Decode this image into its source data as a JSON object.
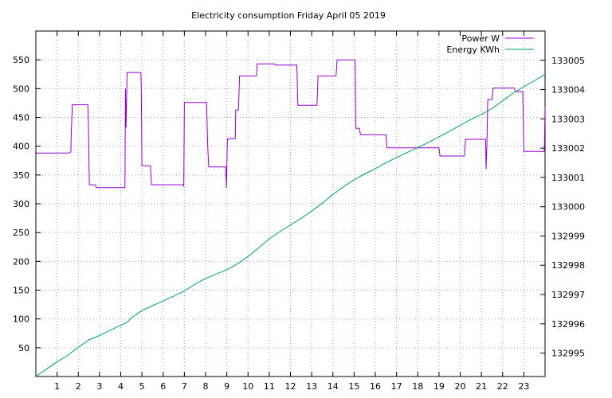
{
  "chart_data": {
    "type": "line",
    "title": "Electricity consumption Friday April 05 2019",
    "xlabel": "",
    "ylabel": "",
    "y2label": "",
    "grid": true,
    "legend_position": "top-right",
    "xlim": [
      0,
      24
    ],
    "ylim": [
      0,
      600
    ],
    "y2lim": [
      132994.2,
      133006
    ],
    "x_ticks": [
      1,
      2,
      3,
      4,
      5,
      6,
      7,
      8,
      9,
      10,
      11,
      12,
      13,
      14,
      15,
      16,
      17,
      18,
      19,
      20,
      21,
      22,
      23
    ],
    "y_ticks": [
      50,
      100,
      150,
      200,
      250,
      300,
      350,
      400,
      450,
      500,
      550
    ],
    "y2_ticks": [
      132995,
      132996,
      132997,
      132998,
      132999,
      133000,
      133001,
      133002,
      133003,
      133004,
      133005
    ],
    "series": [
      {
        "name": "Power W",
        "axis": "y1",
        "color": "#9400d3",
        "points": [
          [
            0.0,
            386
          ],
          [
            0.05,
            388
          ],
          [
            1.55,
            388
          ],
          [
            1.65,
            390
          ],
          [
            1.67,
            425
          ],
          [
            1.72,
            472
          ],
          [
            2.45,
            472
          ],
          [
            2.48,
            435
          ],
          [
            2.52,
            333
          ],
          [
            2.8,
            333
          ],
          [
            2.85,
            328
          ],
          [
            4.2,
            328
          ],
          [
            4.22,
            500
          ],
          [
            4.25,
            432
          ],
          [
            4.3,
            528
          ],
          [
            4.95,
            528
          ],
          [
            4.97,
            505
          ],
          [
            5.0,
            366
          ],
          [
            5.4,
            366
          ],
          [
            5.45,
            333
          ],
          [
            6.95,
            333
          ],
          [
            6.97,
            330
          ],
          [
            7.0,
            476
          ],
          [
            8.05,
            476
          ],
          [
            8.07,
            440
          ],
          [
            8.1,
            398
          ],
          [
            8.15,
            364
          ],
          [
            8.95,
            364
          ],
          [
            8.98,
            328
          ],
          [
            9.03,
            413
          ],
          [
            9.4,
            413
          ],
          [
            9.42,
            463
          ],
          [
            9.55,
            463
          ],
          [
            9.6,
            522
          ],
          [
            10.4,
            522
          ],
          [
            10.43,
            543
          ],
          [
            11.25,
            543
          ],
          [
            11.3,
            541
          ],
          [
            12.3,
            541
          ],
          [
            12.35,
            471
          ],
          [
            13.25,
            471
          ],
          [
            13.3,
            522
          ],
          [
            14.15,
            522
          ],
          [
            14.2,
            550
          ],
          [
            15.05,
            550
          ],
          [
            15.08,
            431
          ],
          [
            15.25,
            431
          ],
          [
            15.3,
            420
          ],
          [
            16.5,
            420
          ],
          [
            16.55,
            397
          ],
          [
            19.0,
            397
          ],
          [
            19.05,
            383
          ],
          [
            20.2,
            383
          ],
          [
            20.25,
            412
          ],
          [
            21.2,
            412
          ],
          [
            21.22,
            360
          ],
          [
            21.26,
            400
          ],
          [
            21.3,
            481
          ],
          [
            21.5,
            481
          ],
          [
            21.55,
            501
          ],
          [
            22.55,
            501
          ],
          [
            22.6,
            495
          ],
          [
            22.95,
            495
          ],
          [
            23.0,
            391
          ],
          [
            23.95,
            391
          ],
          [
            23.97,
            398
          ],
          [
            24.0,
            468
          ]
        ]
      },
      {
        "name": "Energy KWh",
        "axis": "y2",
        "color": "#009e73",
        "points": [
          [
            0.0,
            132994.2
          ],
          [
            0.5,
            132994.45
          ],
          [
            1.0,
            132994.7
          ],
          [
            1.5,
            132994.92
          ],
          [
            2.0,
            132995.2
          ],
          [
            2.5,
            132995.45
          ],
          [
            3.0,
            132995.6
          ],
          [
            3.5,
            132995.78
          ],
          [
            4.0,
            132995.95
          ],
          [
            4.3,
            132996.05
          ],
          [
            4.5,
            132996.2
          ],
          [
            5.0,
            132996.45
          ],
          [
            5.5,
            132996.62
          ],
          [
            6.0,
            132996.78
          ],
          [
            6.5,
            132996.95
          ],
          [
            7.0,
            132997.12
          ],
          [
            7.5,
            132997.35
          ],
          [
            8.0,
            132997.55
          ],
          [
            8.5,
            132997.7
          ],
          [
            9.0,
            132997.85
          ],
          [
            9.5,
            132998.05
          ],
          [
            10.0,
            132998.3
          ],
          [
            10.5,
            132998.6
          ],
          [
            11.0,
            132998.9
          ],
          [
            11.5,
            132999.15
          ],
          [
            12.0,
            132999.38
          ],
          [
            12.5,
            132999.6
          ],
          [
            13.0,
            132999.85
          ],
          [
            13.5,
            133000.12
          ],
          [
            14.0,
            133000.42
          ],
          [
            14.5,
            133000.68
          ],
          [
            15.0,
            133000.92
          ],
          [
            15.5,
            133001.12
          ],
          [
            16.0,
            133001.3
          ],
          [
            16.5,
            133001.5
          ],
          [
            17.0,
            133001.68
          ],
          [
            17.5,
            133001.85
          ],
          [
            18.0,
            133002.02
          ],
          [
            18.5,
            133002.2
          ],
          [
            19.0,
            133002.38
          ],
          [
            19.5,
            133002.58
          ],
          [
            20.0,
            133002.78
          ],
          [
            20.5,
            133002.98
          ],
          [
            21.0,
            133003.15
          ],
          [
            21.5,
            133003.35
          ],
          [
            22.0,
            133003.62
          ],
          [
            22.5,
            133003.88
          ],
          [
            23.0,
            133004.1
          ],
          [
            23.5,
            133004.3
          ],
          [
            24.0,
            133004.52
          ]
        ]
      }
    ]
  }
}
